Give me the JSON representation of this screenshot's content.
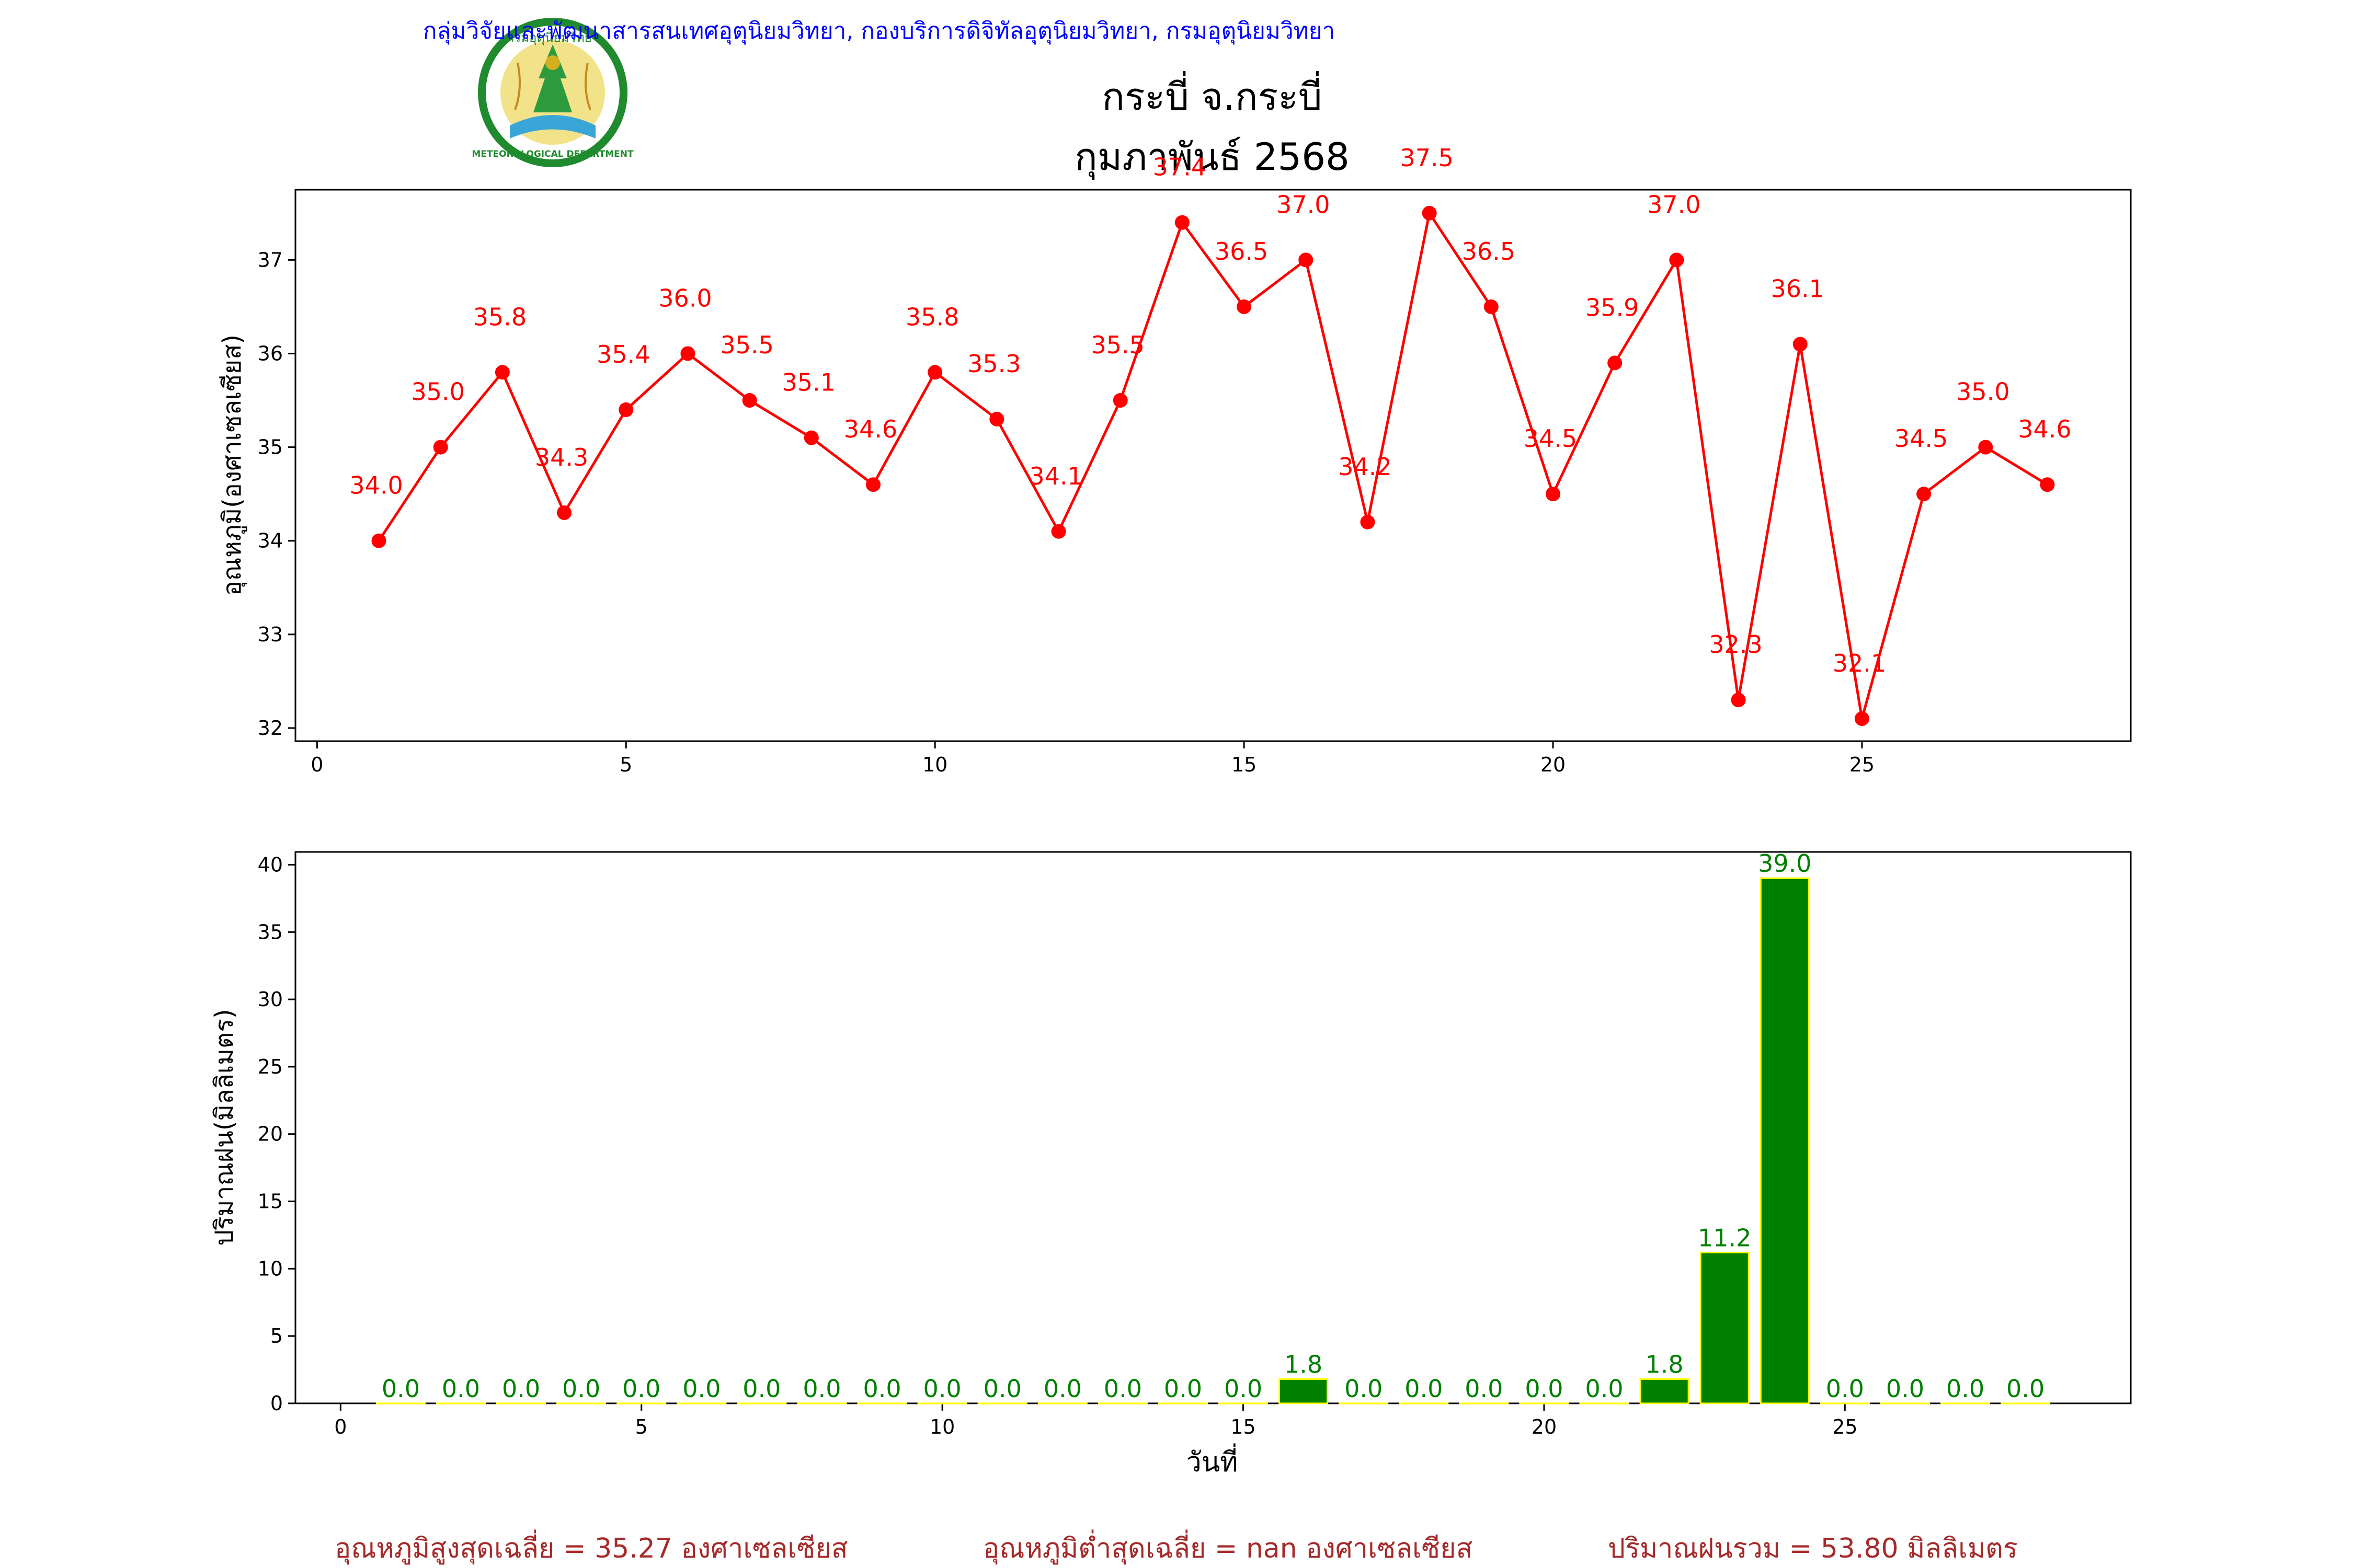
{
  "header": {
    "agency_line": "กลุ่มวิจัยและพัฒนาสารสนเทศอุตุนิยมวิทยา, กองบริการดิจิทัลอุตุนิยมวิทยา, กรมอุตุนิยมวิทยา",
    "title": "กระบี่ จ.กระบี่",
    "subtitle": "กุมภาพันธ์ 2568",
    "logo_text_top": "กรมอุตุนิยมวิทยา",
    "logo_text_bottom": "METEOROLOGICAL DEPARTMENT"
  },
  "footer": {
    "avg_max": "อุณหภูมิสูงสุดเฉลี่ย = 35.27 องศาเซลเซียส",
    "avg_min": "อุณหภูมิต่ำสุดเฉลี่ย = nan องศาเซลเซียส",
    "total_rain": "ปริมาณฝนรวม = 53.80 มิลลิเมตร"
  },
  "colors": {
    "temp_line": "#ff0000",
    "rain_bar": "#008000",
    "rain_edge": "#ffff00",
    "agency_text": "#0000ff",
    "footer_text": "#a52a2a"
  },
  "chart_data": [
    {
      "type": "line",
      "ylabel": "อุณหภูมิ(องศาเซลเซียส)",
      "xlabel": "",
      "x": [
        1,
        2,
        3,
        4,
        5,
        6,
        7,
        8,
        9,
        10,
        11,
        12,
        13,
        14,
        15,
        16,
        17,
        18,
        19,
        20,
        21,
        22,
        23,
        24,
        25,
        26,
        27,
        28
      ],
      "values": [
        34.0,
        35.0,
        35.8,
        34.3,
        35.4,
        36.0,
        35.5,
        35.1,
        34.6,
        35.8,
        35.3,
        34.1,
        35.5,
        37.4,
        36.5,
        37.0,
        34.2,
        37.5,
        36.5,
        34.5,
        35.9,
        37.0,
        32.3,
        36.1,
        32.1,
        34.5,
        35.0,
        34.6
      ],
      "labels": [
        "34.0",
        "35.0",
        "35.8",
        "34.3",
        "35.4",
        "36.0",
        "35.5",
        "35.1",
        "34.6",
        "35.8",
        "35.3",
        "34.1",
        "35.5",
        "37.4",
        "36.5",
        "37.0",
        "34.2",
        "37.5",
        "36.5",
        "34.5",
        "35.9",
        "37.0",
        "32.3",
        "36.1",
        "32.1",
        "34.5",
        "35.0",
        "34.6"
      ],
      "xticks": [
        0,
        5,
        10,
        15,
        20,
        25
      ],
      "yticks": [
        32,
        33,
        34,
        35,
        36,
        37
      ],
      "xlim": [
        -0.35,
        29.35
      ],
      "ylim": [
        31.86,
        37.75
      ],
      "grid": false
    },
    {
      "type": "bar",
      "ylabel": "ปริมาณฝน(มิลลิเมตร)",
      "xlabel": "วันที่",
      "x": [
        1,
        2,
        3,
        4,
        5,
        6,
        7,
        8,
        9,
        10,
        11,
        12,
        13,
        14,
        15,
        16,
        17,
        18,
        19,
        20,
        21,
        22,
        23,
        24,
        25,
        26,
        27,
        28
      ],
      "values": [
        0.0,
        0.0,
        0.0,
        0.0,
        0.0,
        0.0,
        0.0,
        0.0,
        0.0,
        0.0,
        0.0,
        0.0,
        0.0,
        0.0,
        0.0,
        1.8,
        0.0,
        0.0,
        0.0,
        0.0,
        0.0,
        1.8,
        11.2,
        39.0,
        0.0,
        0.0,
        0.0,
        0.0
      ],
      "labels": [
        "0.0",
        "0.0",
        "0.0",
        "0.0",
        "0.0",
        "0.0",
        "0.0",
        "0.0",
        "0.0",
        "0.0",
        "0.0",
        "0.0",
        "0.0",
        "0.0",
        "0.0",
        "1.8",
        "0.0",
        "0.0",
        "0.0",
        "0.0",
        "0.0",
        "1.8",
        "11.2",
        "39.0",
        "0.0",
        "0.0",
        "0.0",
        "0.0"
      ],
      "xticks": [
        0,
        5,
        10,
        15,
        20,
        25
      ],
      "yticks": [
        0,
        5,
        10,
        15,
        20,
        25,
        30,
        35,
        40
      ],
      "xlim": [
        -0.75,
        29.75
      ],
      "ylim": [
        0,
        40.95
      ],
      "grid": false
    }
  ]
}
